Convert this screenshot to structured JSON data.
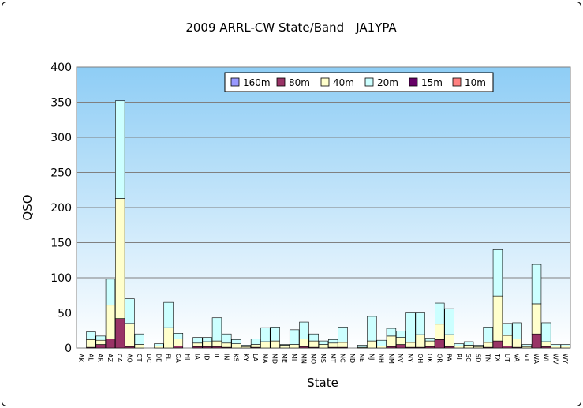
{
  "chart_data": {
    "type": "bar",
    "stacked": true,
    "title": "2009 ARRL-CW State/Band　JA1YPA",
    "xlabel": "State",
    "ylabel": "QSO",
    "ylim": [
      0,
      400
    ],
    "yticks": [
      0,
      50,
      100,
      150,
      200,
      250,
      300,
      350,
      400
    ],
    "grid": true,
    "legend_position": "top",
    "categories": [
      "AK",
      "AL",
      "AR",
      "AZ",
      "CA",
      "AO",
      "CT",
      "DC",
      "DE",
      "FL",
      "GA",
      "HI",
      "IA",
      "ID",
      "IL",
      "IN",
      "KS",
      "KY",
      "LA",
      "MA",
      "MD",
      "ME",
      "MI",
      "MN",
      "MO",
      "MS",
      "MT",
      "NC",
      "ND",
      "NE",
      "NJ",
      "NH",
      "NM",
      "NV",
      "NY",
      "OH",
      "OK",
      "OR",
      "PA",
      "RI",
      "SC",
      "SD",
      "TN",
      "TX",
      "UT",
      "VA",
      "VT",
      "WA",
      "WI",
      "WV",
      "WY"
    ],
    "series": [
      {
        "name": "160m",
        "color": "#9999ff",
        "values": [
          0,
          0,
          0,
          0,
          0,
          0,
          0,
          0,
          0,
          0,
          0,
          0,
          0,
          0,
          0,
          0,
          0,
          0,
          0,
          0,
          0,
          0,
          0,
          0,
          0,
          0,
          0,
          0,
          0,
          0,
          0,
          0,
          0,
          0,
          0,
          0,
          0,
          0,
          0,
          0,
          0,
          0,
          0,
          0,
          0,
          0,
          0,
          0,
          0,
          0,
          0
        ]
      },
      {
        "name": "80m",
        "color": "#993366",
        "values": [
          0,
          1,
          5,
          13,
          42,
          2,
          0,
          0,
          0,
          0,
          3,
          0,
          2,
          2,
          2,
          1,
          0,
          0,
          1,
          0,
          0,
          0,
          0,
          2,
          1,
          0,
          1,
          1,
          0,
          0,
          0,
          0,
          2,
          5,
          1,
          1,
          2,
          12,
          2,
          0,
          0,
          0,
          1,
          10,
          3,
          1,
          0,
          20,
          2,
          0,
          0
        ]
      },
      {
        "name": "40m",
        "color": "#ffffcc",
        "values": [
          0,
          11,
          6,
          48,
          171,
          33,
          5,
          0,
          3,
          29,
          10,
          0,
          5,
          7,
          8,
          6,
          6,
          2,
          4,
          9,
          10,
          4,
          5,
          11,
          9,
          5,
          6,
          7,
          0,
          1,
          10,
          3,
          15,
          10,
          7,
          18,
          8,
          22,
          17,
          3,
          4,
          2,
          7,
          64,
          15,
          12,
          2,
          43,
          7,
          3,
          3
        ]
      },
      {
        "name": "20m",
        "color": "#ccffff",
        "values": [
          0,
          11,
          6,
          37,
          139,
          35,
          15,
          0,
          3,
          36,
          8,
          0,
          8,
          6,
          33,
          13,
          6,
          2,
          8,
          20,
          20,
          1,
          21,
          24,
          10,
          5,
          5,
          22,
          0,
          3,
          35,
          8,
          11,
          9,
          43,
          32,
          4,
          30,
          37,
          3,
          5,
          2,
          22,
          66,
          17,
          23,
          3,
          56,
          27,
          2,
          2
        ]
      },
      {
        "name": "15m",
        "color": "#660066",
        "values": [
          0,
          0,
          0,
          0,
          0,
          0,
          0,
          0,
          0,
          0,
          0,
          0,
          0,
          0,
          0,
          0,
          0,
          0,
          0,
          0,
          0,
          0,
          0,
          0,
          0,
          0,
          0,
          0,
          0,
          0,
          0,
          0,
          0,
          0,
          0,
          0,
          0,
          0,
          0,
          0,
          0,
          0,
          0,
          0,
          0,
          0,
          0,
          0,
          0,
          0,
          0
        ]
      },
      {
        "name": "10m",
        "color": "#ff8080",
        "values": [
          0,
          0,
          0,
          0,
          0,
          0,
          0,
          0,
          0,
          0,
          0,
          0,
          0,
          0,
          0,
          0,
          0,
          0,
          0,
          0,
          0,
          0,
          0,
          0,
          0,
          0,
          0,
          0,
          0,
          0,
          0,
          0,
          0,
          0,
          0,
          0,
          0,
          0,
          0,
          0,
          0,
          0,
          0,
          0,
          0,
          0,
          0,
          0,
          0,
          0,
          0
        ]
      }
    ]
  }
}
